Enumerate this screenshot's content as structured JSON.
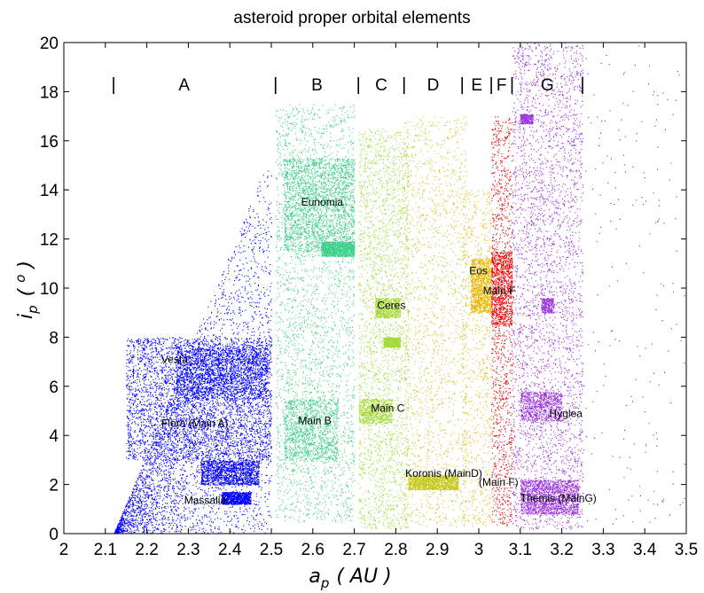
{
  "chart_data": {
    "type": "scatter",
    "title": "asteroid proper orbital elements",
    "xlabel_main": "a",
    "xlabel_sub": "p",
    "xlabel_unit": "( AU )",
    "ylabel_main": "i",
    "ylabel_sub": "p",
    "ylabel_unit": "( ",
    "ylabel_unit_sup": "o",
    "ylabel_unit_end": " )",
    "xlim": [
      2.0,
      3.5
    ],
    "ylim": [
      0,
      20
    ],
    "xticks": [
      2.0,
      2.1,
      2.2,
      2.3,
      2.4,
      2.5,
      2.6,
      2.7,
      2.8,
      2.9,
      3.0,
      3.1,
      3.2,
      3.3,
      3.4,
      3.5
    ],
    "xtick_labels": [
      "2",
      "2.1",
      "2.2",
      "2.3",
      "2.4",
      "2.5",
      "2.6",
      "2.7",
      "2.8",
      "2.9",
      "3",
      "3.1",
      "3.2",
      "3.3",
      "3.4",
      "3.5"
    ],
    "yticks": [
      0,
      2,
      4,
      6,
      8,
      10,
      12,
      14,
      16,
      18,
      20
    ],
    "ytick_labels": [
      "0",
      "2",
      "4",
      "6",
      "8",
      "10",
      "12",
      "14",
      "16",
      "18",
      "20"
    ],
    "grid": false,
    "zone_dividers": {
      "text": "|",
      "y": 18.3,
      "x": [
        2.12,
        2.51,
        2.71,
        2.82,
        2.96,
        3.03,
        3.08,
        3.25
      ]
    },
    "zones": [
      {
        "label": "A",
        "x": 2.29,
        "y": 18.3
      },
      {
        "label": "B",
        "x": 2.61,
        "y": 18.3
      },
      {
        "label": "C",
        "x": 2.765,
        "y": 18.3
      },
      {
        "label": "D",
        "x": 2.89,
        "y": 18.3
      },
      {
        "label": "E",
        "x": 2.995,
        "y": 18.3
      },
      {
        "label": "F",
        "x": 3.055,
        "y": 18.3
      },
      {
        "label": "G",
        "x": 3.165,
        "y": 18.3
      }
    ],
    "series": [
      {
        "color": "#0000ff",
        "points": 11000,
        "regions": [
          {
            "x": [
              2.12,
              2.5
            ],
            "y": [
              0,
              14.8
            ],
            "weight": 0.3,
            "kind": "triangle"
          },
          {
            "x": [
              2.15,
              2.5
            ],
            "y": [
              3.0,
              8.0
            ],
            "weight": 0.35
          },
          {
            "x": [
              2.27,
              2.49
            ],
            "y": [
              5.5,
              7.6
            ],
            "weight": 0.15
          },
          {
            "x": [
              2.33,
              2.47
            ],
            "y": [
              2.0,
              3.0
            ],
            "weight": 0.12
          },
          {
            "x": [
              2.38,
              2.45
            ],
            "y": [
              1.2,
              1.7
            ],
            "weight": 0.08
          }
        ]
      },
      {
        "color": "#3cd08a",
        "points": 7000,
        "regions": [
          {
            "x": [
              2.51,
              2.7
            ],
            "y": [
              0.5,
              17.5
            ],
            "weight": 0.4
          },
          {
            "x": [
              2.53,
              2.7
            ],
            "y": [
              11.5,
              15.3
            ],
            "weight": 0.3
          },
          {
            "x": [
              2.53,
              2.66
            ],
            "y": [
              3.0,
              5.5
            ],
            "weight": 0.15
          },
          {
            "x": [
              2.62,
              2.7
            ],
            "y": [
              11.3,
              11.9
            ],
            "weight": 0.15
          }
        ]
      },
      {
        "color": "#a6d93a",
        "points": 4500,
        "regions": [
          {
            "x": [
              2.71,
              2.83
            ],
            "y": [
              0.2,
              16.5
            ],
            "weight": 0.55
          },
          {
            "x": [
              2.75,
              2.81
            ],
            "y": [
              8.8,
              9.6
            ],
            "weight": 0.15
          },
          {
            "x": [
              2.71,
              2.79
            ],
            "y": [
              4.5,
              5.5
            ],
            "weight": 0.15
          },
          {
            "x": [
              2.77,
              2.81
            ],
            "y": [
              7.6,
              8.0
            ],
            "weight": 0.15
          }
        ]
      },
      {
        "color": "#c8c820",
        "points": 3000,
        "regions": [
          {
            "x": [
              2.82,
              2.97
            ],
            "y": [
              0.3,
              17.0
            ],
            "weight": 0.55
          },
          {
            "x": [
              2.83,
              2.95
            ],
            "y": [
              1.8,
              2.4
            ],
            "weight": 0.45
          }
        ]
      },
      {
        "color": "#e8b800",
        "points": 1800,
        "regions": [
          {
            "x": [
              2.96,
              3.03
            ],
            "y": [
              0.3,
              14.0
            ],
            "weight": 0.4
          },
          {
            "x": [
              2.98,
              3.03
            ],
            "y": [
              9.0,
              11.2
            ],
            "weight": 0.6
          }
        ]
      },
      {
        "color": "#ee0000",
        "points": 2000,
        "regions": [
          {
            "x": [
              3.03,
              3.08
            ],
            "y": [
              0.3,
              17.0
            ],
            "weight": 0.55
          },
          {
            "x": [
              3.03,
              3.08
            ],
            "y": [
              8.5,
              11.5
            ],
            "weight": 0.45
          }
        ]
      },
      {
        "color": "#9a30e0",
        "points": 6000,
        "regions": [
          {
            "x": [
              3.08,
              3.25
            ],
            "y": [
              0.2,
              20.0
            ],
            "weight": 0.55
          },
          {
            "x": [
              3.1,
              3.24
            ],
            "y": [
              0.8,
              2.2
            ],
            "weight": 0.25
          },
          {
            "x": [
              3.1,
              3.2
            ],
            "y": [
              4.6,
              5.8
            ],
            "weight": 0.12
          },
          {
            "x": [
              3.15,
              3.18
            ],
            "y": [
              9.0,
              9.6
            ],
            "weight": 0.04
          },
          {
            "x": [
              3.1,
              3.13
            ],
            "y": [
              16.7,
              17.1
            ],
            "weight": 0.04
          }
        ]
      },
      {
        "color": "#2050d0",
        "points": 200,
        "regions": [
          {
            "x": [
              3.25,
              3.5
            ],
            "y": [
              0.2,
              20.0
            ],
            "weight": 1.0
          }
        ]
      }
    ],
    "annotations": [
      {
        "text": "Vesta",
        "x": 2.235,
        "y": 7.1
      },
      {
        "text": "Flora (Main A)",
        "x": 2.235,
        "y": 4.5
      },
      {
        "text": "Massalia",
        "x": 2.29,
        "y": 1.35
      },
      {
        "text": "Eunomia",
        "x": 2.572,
        "y": 13.5
      },
      {
        "text": "Main B",
        "x": 2.565,
        "y": 4.6
      },
      {
        "text": "Ceres",
        "x": 2.755,
        "y": 9.3
      },
      {
        "text": "Main C",
        "x": 2.74,
        "y": 5.1
      },
      {
        "text": "Koronis (MainD)",
        "x": 2.823,
        "y": 2.45
      },
      {
        "text": "Eos",
        "x": 2.977,
        "y": 10.7
      },
      {
        "text": "Main F",
        "x": 3.01,
        "y": 9.9
      },
      {
        "text": "(Main F)",
        "x": 3.0,
        "y": 2.1
      },
      {
        "text": "Hyglea",
        "x": 3.17,
        "y": 4.9
      },
      {
        "text": "Themis (MainG)",
        "x": 3.1,
        "y": 1.45
      }
    ]
  }
}
